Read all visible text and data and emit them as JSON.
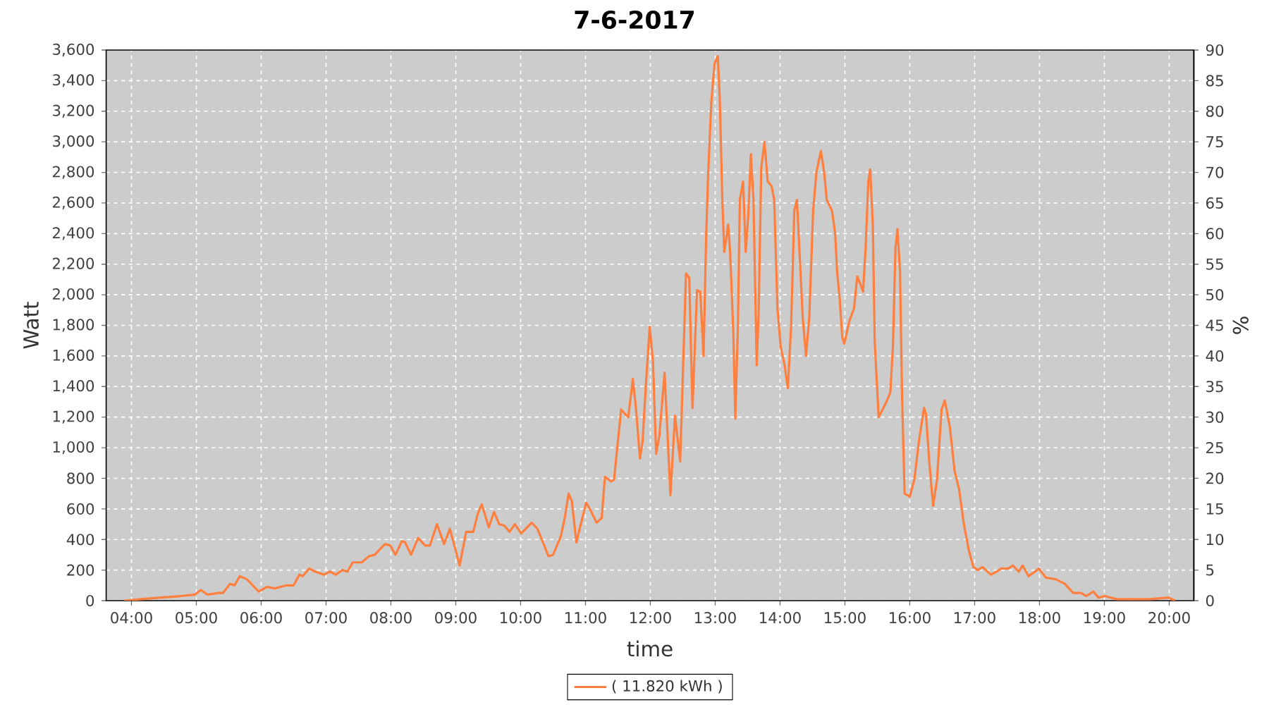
{
  "chart_data": {
    "type": "line",
    "title": "7-6-2017",
    "xlabel": "time",
    "ylabel": "Watt",
    "y2label": "%",
    "x": [
      3.89,
      4.14,
      4.45,
      4.76,
      4.98,
      5.07,
      5.17,
      5.34,
      5.41,
      5.52,
      5.59,
      5.67,
      5.78,
      5.96,
      6.09,
      6.21,
      6.39,
      6.5,
      6.59,
      6.64,
      6.74,
      6.83,
      6.97,
      7.06,
      7.15,
      7.25,
      7.33,
      7.41,
      7.55,
      7.66,
      7.75,
      7.91,
      7.99,
      8.07,
      8.17,
      8.22,
      8.31,
      8.42,
      8.53,
      8.6,
      8.71,
      8.82,
      8.91,
      9.06,
      9.16,
      9.27,
      9.34,
      9.4,
      9.51,
      9.59,
      9.67,
      9.75,
      9.83,
      9.91,
      10.01,
      10.17,
      10.26,
      10.43,
      10.5,
      10.62,
      10.68,
      10.74,
      10.79,
      10.86,
      10.91,
      11.01,
      11.08,
      11.17,
      11.25,
      11.3,
      11.39,
      11.44,
      11.49,
      11.55,
      11.61,
      11.66,
      11.73,
      11.78,
      11.84,
      11.88,
      11.93,
      11.99,
      12.04,
      12.09,
      12.14,
      12.22,
      12.31,
      12.38,
      12.46,
      12.55,
      12.6,
      12.65,
      12.72,
      12.77,
      12.82,
      12.86,
      12.89,
      12.94,
      12.99,
      13.04,
      13.07,
      13.11,
      13.14,
      13.2,
      13.23,
      13.28,
      13.31,
      13.35,
      13.38,
      13.43,
      13.47,
      13.51,
      13.55,
      13.59,
      13.64,
      13.67,
      13.71,
      13.76,
      13.81,
      13.87,
      13.91,
      13.96,
      14.01,
      14.07,
      14.12,
      14.17,
      14.22,
      14.26,
      14.3,
      14.35,
      14.4,
      14.45,
      14.51,
      14.56,
      14.63,
      14.68,
      14.72,
      14.8,
      14.85,
      14.88,
      14.92,
      14.96,
      14.99,
      15.07,
      15.14,
      15.19,
      15.23,
      15.28,
      15.32,
      15.36,
      15.39,
      15.43,
      15.46,
      15.52,
      15.57,
      15.64,
      15.7,
      15.74,
      15.78,
      15.81,
      15.85,
      15.88,
      15.92,
      16.0,
      16.07,
      16.14,
      16.22,
      16.25,
      16.3,
      16.36,
      16.42,
      16.49,
      16.54,
      16.62,
      16.69,
      16.76,
      16.83,
      16.91,
      16.98,
      17.05,
      17.12,
      17.25,
      17.34,
      17.41,
      17.52,
      17.59,
      17.68,
      17.74,
      17.83,
      17.9,
      17.99,
      18.1,
      18.25,
      18.39,
      18.52,
      18.64,
      18.72,
      18.83,
      18.91,
      19.01,
      19.19,
      19.41,
      19.7,
      19.99,
      20.09
    ],
    "series": [
      {
        "name": "( 11.820 kWh )",
        "color": "#ff7f3f",
        "values": [
          0,
          10,
          20,
          30,
          40,
          70,
          40,
          50,
          50,
          110,
          100,
          160,
          140,
          60,
          90,
          80,
          100,
          100,
          170,
          160,
          210,
          190,
          170,
          190,
          170,
          200,
          190,
          250,
          250,
          290,
          300,
          370,
          360,
          300,
          390,
          380,
          300,
          410,
          360,
          360,
          500,
          370,
          470,
          230,
          450,
          450,
          570,
          630,
          480,
          580,
          500,
          490,
          450,
          500,
          440,
          510,
          470,
          290,
          300,
          420,
          540,
          700,
          650,
          380,
          470,
          640,
          590,
          510,
          540,
          810,
          780,
          790,
          1000,
          1250,
          1220,
          1200,
          1450,
          1250,
          930,
          1040,
          1400,
          1790,
          1570,
          960,
          1080,
          1490,
          690,
          1210,
          910,
          2140,
          2110,
          1260,
          2030,
          2020,
          1600,
          2370,
          2770,
          3260,
          3510,
          3560,
          3290,
          2620,
          2280,
          2460,
          2280,
          1750,
          1190,
          1790,
          2620,
          2740,
          2280,
          2520,
          2920,
          2620,
          1540,
          1880,
          2830,
          3000,
          2740,
          2710,
          2620,
          1910,
          1660,
          1540,
          1390,
          1790,
          2550,
          2620,
          2280,
          1850,
          1600,
          1850,
          2550,
          2800,
          2940,
          2800,
          2620,
          2550,
          2400,
          2150,
          1970,
          1720,
          1680,
          1830,
          1910,
          2120,
          2080,
          2020,
          2310,
          2740,
          2820,
          2460,
          1690,
          1200,
          1240,
          1300,
          1360,
          1660,
          2310,
          2430,
          2150,
          1360,
          700,
          680,
          790,
          1040,
          1260,
          1220,
          910,
          620,
          790,
          1250,
          1310,
          1130,
          850,
          730,
          510,
          330,
          220,
          200,
          220,
          170,
          190,
          210,
          210,
          230,
          190,
          230,
          160,
          180,
          210,
          150,
          140,
          110,
          50,
          50,
          30,
          60,
          20,
          30,
          10,
          10,
          10,
          20,
          0
        ]
      }
    ],
    "xlim": [
      3.61,
      20.38
    ],
    "xticks": [
      {
        "value": 4,
        "label": "04:00"
      },
      {
        "value": 5,
        "label": "05:00"
      },
      {
        "value": 6,
        "label": "06:00"
      },
      {
        "value": 7,
        "label": "07:00"
      },
      {
        "value": 8,
        "label": "08:00"
      },
      {
        "value": 9,
        "label": "09:00"
      },
      {
        "value": 10,
        "label": "10:00"
      },
      {
        "value": 11,
        "label": "11:00"
      },
      {
        "value": 12,
        "label": "12:00"
      },
      {
        "value": 13,
        "label": "13:00"
      },
      {
        "value": 14,
        "label": "14:00"
      },
      {
        "value": 15,
        "label": "15:00"
      },
      {
        "value": 16,
        "label": "16:00"
      },
      {
        "value": 17,
        "label": "17:00"
      },
      {
        "value": 18,
        "label": "18:00"
      },
      {
        "value": 19,
        "label": "19:00"
      },
      {
        "value": 20,
        "label": "20:00"
      }
    ],
    "ylim": [
      0,
      3600
    ],
    "yticks": [
      0,
      200,
      400,
      600,
      800,
      {
        "value": 1000,
        "label": "1,000"
      },
      {
        "value": 1200,
        "label": "1,200"
      },
      {
        "value": 1400,
        "label": "1,400"
      },
      {
        "value": 1600,
        "label": "1,600"
      },
      {
        "value": 1800,
        "label": "1,800"
      },
      {
        "value": 2000,
        "label": "2,000"
      },
      {
        "value": 2200,
        "label": "2,200"
      },
      {
        "value": 2400,
        "label": "2,400"
      },
      {
        "value": 2600,
        "label": "2,600"
      },
      {
        "value": 2800,
        "label": "2,800"
      },
      {
        "value": 3000,
        "label": "3,000"
      },
      {
        "value": 3200,
        "label": "3,200"
      },
      {
        "value": 3400,
        "label": "3,400"
      },
      {
        "value": 3600,
        "label": "3,600"
      }
    ],
    "y2lim": [
      0,
      90
    ],
    "y2ticks": [
      0,
      5,
      10,
      15,
      20,
      25,
      30,
      35,
      40,
      45,
      50,
      55,
      60,
      65,
      70,
      75,
      80,
      85,
      90
    ],
    "grid": true,
    "legend": "bottom"
  }
}
